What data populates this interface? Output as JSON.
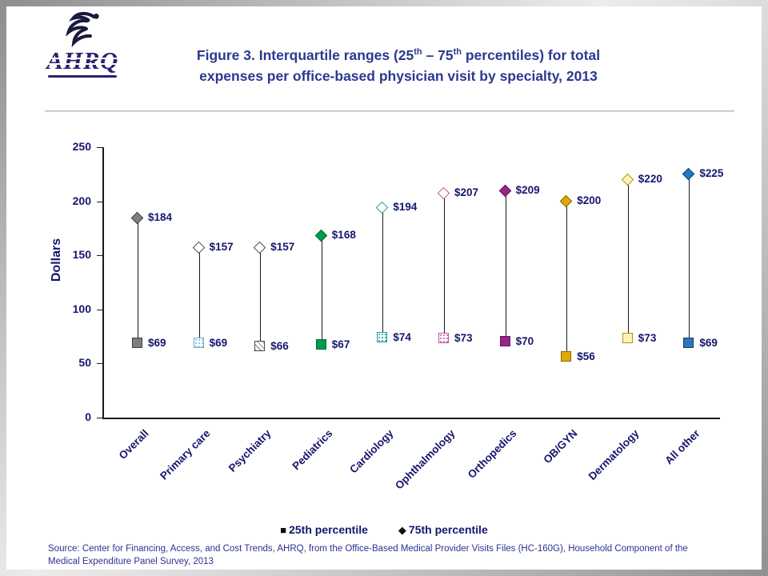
{
  "colors": {
    "title": "#2b3990",
    "label": "#16166e",
    "source": "#2e3192",
    "axis": "#1a1a1a",
    "logo": "#2b2171"
  },
  "header": {
    "logo_text": "AHRQ",
    "title": {
      "p1": "Figure 3. Interquartile ranges (25",
      "sup1": "th",
      "p2": " – 75",
      "sup2": "th",
      "p3": " percentiles) for total",
      "line2": "expenses per office-based physician visit by specialty, 2013"
    }
  },
  "chart_data": {
    "type": "scatter",
    "subtype": "high-low-range",
    "title": "Figure 3. Interquartile ranges (25th – 75th percentiles) for total expenses per office-based physician visit by specialty, 2013",
    "ylabel": "Dollars",
    "ylim": [
      0,
      250
    ],
    "yticks": [
      0,
      50,
      100,
      150,
      200,
      250
    ],
    "grid": false,
    "legend_position": "bottom",
    "categories": [
      "Overall",
      "Primary care",
      "Psychiatry",
      "Pediatrics",
      "Cardiology",
      "Ophthalmology",
      "Orthopedics",
      "OB/GYN",
      "Dermatology",
      "All other"
    ],
    "series": [
      {
        "name": "25th percentile",
        "marker": "square",
        "values": [
          69,
          69,
          66,
          67,
          74,
          73,
          70,
          56,
          73,
          69
        ]
      },
      {
        "name": "75th percentile",
        "marker": "diamond",
        "values": [
          184,
          157,
          157,
          168,
          194,
          207,
          209,
          200,
          220,
          225
        ]
      }
    ],
    "value_labels": {
      "p25": [
        "$69",
        "$69",
        "$66",
        "$67",
        "$74",
        "$73",
        "$70",
        "$56",
        "$73",
        "$69"
      ],
      "p75": [
        "$184",
        "$157",
        "$157",
        "$168",
        "$194",
        "$207",
        "$209",
        "$200",
        "$220",
        "$225"
      ]
    },
    "marker_styles": [
      {
        "square": {
          "fill": "#7f7f7f",
          "border": "#3f3f3f"
        },
        "diamond": {
          "fill": "#7f7f7f",
          "border": "#3f3f3f"
        }
      },
      {
        "square": {
          "fill": "#ffffff",
          "border": "#6fa8c9",
          "pattern": "dots",
          "pattern_color": "#8fc3de"
        },
        "diamond": {
          "fill": "#ffffff",
          "border": "#4a4a4a"
        }
      },
      {
        "square": {
          "fill": "#ffffff",
          "border": "#4a4a4a",
          "pattern": "hatch",
          "pattern_color": "#9a9a9a"
        },
        "diamond": {
          "fill": "#ffffff",
          "border": "#4a4a4a"
        }
      },
      {
        "square": {
          "fill": "#009a4e",
          "border": "#006b36"
        },
        "diamond": {
          "fill": "#009a4e",
          "border": "#006b36"
        }
      },
      {
        "square": {
          "fill": "#ffffff",
          "border": "#1d9f9f",
          "pattern": "dots",
          "pattern_color": "#2fa8a8"
        },
        "diamond": {
          "fill": "#ffffff",
          "border": "#1d9f9f"
        }
      },
      {
        "square": {
          "fill": "#ffffff",
          "border": "#c0569f",
          "pattern": "dots",
          "pattern_color": "#cf74b4"
        },
        "diamond": {
          "fill": "#ffffff",
          "border": "#c0569f"
        }
      },
      {
        "square": {
          "fill": "#98248d",
          "border": "#5f1758"
        },
        "diamond": {
          "fill": "#98248d",
          "border": "#5f1758"
        }
      },
      {
        "square": {
          "fill": "#dfa900",
          "border": "#8a6800"
        },
        "diamond": {
          "fill": "#dfa900",
          "border": "#8a6800"
        }
      },
      {
        "square": {
          "fill": "#fdf3b3",
          "border": "#b78d1f"
        },
        "diamond": {
          "fill": "#fdf3b3",
          "border": "#b78d1f"
        }
      },
      {
        "square": {
          "fill": "#2e76b5",
          "border": "#173f63"
        },
        "diamond": {
          "fill": "#2079c4",
          "border": "#173f63"
        }
      }
    ]
  },
  "legend": {
    "items": [
      {
        "symbol": "■",
        "label": "25th percentile"
      },
      {
        "symbol": "◆",
        "label": "75th percentile"
      }
    ]
  },
  "source": {
    "text": "Source: Center for Financing, Access, and Cost Trends, AHRQ, from the Office-Based Medical Provider Visits Files (HC-160G), Household Component of the Medical Expenditure Panel Survey, 2013"
  }
}
